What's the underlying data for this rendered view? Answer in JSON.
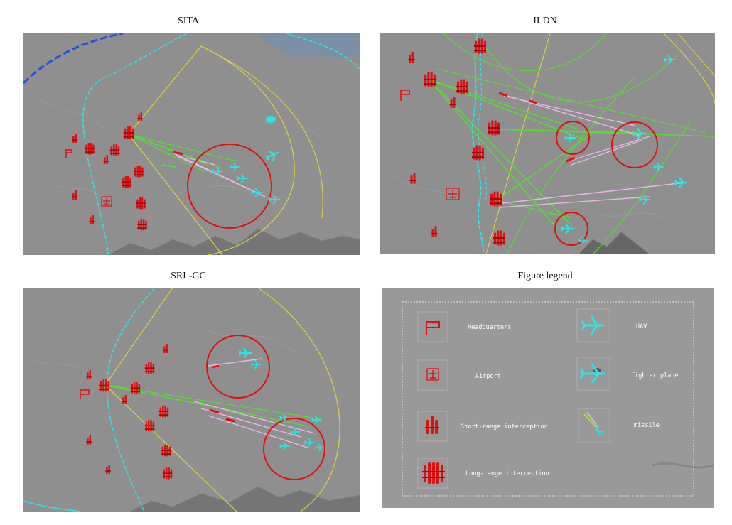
{
  "panels": {
    "sita": {
      "title": "SITA"
    },
    "ildn": {
      "title": "ILDN"
    },
    "srlgc": {
      "title": "SRL-GC"
    },
    "legend": {
      "title": "Figure legend"
    }
  },
  "legend": {
    "items": [
      {
        "icon": "headquarters-flag-icon",
        "label": "Headquarters"
      },
      {
        "icon": "airport-icon",
        "label": "Airport"
      },
      {
        "icon": "short-range-interception-icon",
        "label": "Short-range interception"
      },
      {
        "icon": "long-range-interception-icon",
        "label": "Long-range interception"
      },
      {
        "icon": "uav-icon",
        "label": "UAV"
      },
      {
        "icon": "fighter-plane-icon",
        "label": "fighter plane"
      },
      {
        "icon": "missile-icon",
        "label": "missile"
      }
    ]
  },
  "colors": {
    "map": "#8f8f8f",
    "red": "#e01010",
    "cyan": "#29e6e6",
    "yellow": "#d8d040",
    "green": "#55dd33",
    "pink": "#e8b8e8",
    "blue": "#2255dd"
  }
}
